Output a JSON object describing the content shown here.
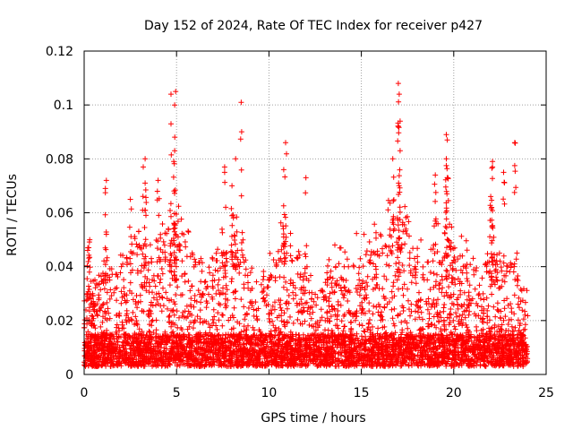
{
  "chart_data": {
    "type": "scatter",
    "title": "Day 152 of 2024, Rate Of TEC Index for receiver p427",
    "xlabel": "GPS time / hours",
    "ylabel": "ROTI / TECUs",
    "xlim": [
      0,
      25
    ],
    "ylim": [
      0,
      0.12
    ],
    "x_ticks": [
      0,
      5,
      10,
      15,
      20,
      25
    ],
    "x_tick_labels": [
      "0",
      "5",
      "10",
      "15",
      "20",
      "25"
    ],
    "y_ticks": [
      0,
      0.02,
      0.04,
      0.06,
      0.08,
      0.1,
      0.12
    ],
    "y_tick_labels": [
      "0",
      "0.02",
      "0.04",
      "0.06",
      "0.08",
      "0.1",
      "0.12"
    ],
    "grid": true,
    "marker": "+",
    "color": "#ff0000",
    "data_extent_hours": [
      0,
      24
    ],
    "envelope": {
      "hours": [
        0,
        0.5,
        1,
        1.5,
        2,
        2.5,
        3,
        3.5,
        4,
        4.5,
        5,
        5.5,
        6,
        6.5,
        7,
        7.5,
        8,
        8.5,
        9,
        9.5,
        10,
        10.5,
        11,
        11.5,
        12,
        12.5,
        13,
        13.5,
        14,
        14.5,
        15,
        15.5,
        16,
        16.5,
        17,
        17.5,
        18,
        18.5,
        19,
        19.5,
        20,
        20.5,
        21,
        21.5,
        22,
        22.5,
        23,
        23.5,
        24
      ],
      "typical_max": [
        0.03,
        0.028,
        0.035,
        0.032,
        0.038,
        0.042,
        0.045,
        0.04,
        0.048,
        0.052,
        0.055,
        0.048,
        0.04,
        0.035,
        0.038,
        0.045,
        0.05,
        0.046,
        0.035,
        0.03,
        0.038,
        0.045,
        0.05,
        0.042,
        0.035,
        0.03,
        0.034,
        0.04,
        0.045,
        0.042,
        0.046,
        0.045,
        0.05,
        0.055,
        0.058,
        0.05,
        0.045,
        0.042,
        0.046,
        0.05,
        0.045,
        0.042,
        0.04,
        0.035,
        0.045,
        0.038,
        0.04,
        0.036,
        0.025
      ]
    },
    "notable_points": [
      {
        "x": 4.7,
        "y": 0.104
      },
      {
        "x": 4.95,
        "y": 0.105
      },
      {
        "x": 4.9,
        "y": 0.1
      },
      {
        "x": 4.7,
        "y": 0.093
      },
      {
        "x": 4.9,
        "y": 0.083
      },
      {
        "x": 4.85,
        "y": 0.079
      },
      {
        "x": 4.0,
        "y": 0.072
      },
      {
        "x": 8.5,
        "y": 0.101
      },
      {
        "x": 8.2,
        "y": 0.08
      },
      {
        "x": 7.6,
        "y": 0.077
      },
      {
        "x": 8.0,
        "y": 0.07
      },
      {
        "x": 10.9,
        "y": 0.086
      },
      {
        "x": 10.8,
        "y": 0.076
      },
      {
        "x": 12.0,
        "y": 0.073
      },
      {
        "x": 3.3,
        "y": 0.08
      },
      {
        "x": 3.2,
        "y": 0.077
      },
      {
        "x": 3.3,
        "y": 0.071
      },
      {
        "x": 1.2,
        "y": 0.072
      },
      {
        "x": 1.15,
        "y": 0.069
      },
      {
        "x": 17.0,
        "y": 0.108
      },
      {
        "x": 17.05,
        "y": 0.104
      },
      {
        "x": 17.1,
        "y": 0.094
      },
      {
        "x": 17.0,
        "y": 0.092
      },
      {
        "x": 16.7,
        "y": 0.08
      },
      {
        "x": 17.1,
        "y": 0.083
      },
      {
        "x": 19.6,
        "y": 0.089
      },
      {
        "x": 19.65,
        "y": 0.087
      },
      {
        "x": 19.6,
        "y": 0.08
      },
      {
        "x": 19.65,
        "y": 0.073
      },
      {
        "x": 19.0,
        "y": 0.074
      },
      {
        "x": 22.1,
        "y": 0.079
      },
      {
        "x": 22.1,
        "y": 0.077
      },
      {
        "x": 22.0,
        "y": 0.066
      },
      {
        "x": 22.05,
        "y": 0.062
      },
      {
        "x": 23.3,
        "y": 0.086
      },
      {
        "x": 22.7,
        "y": 0.075
      },
      {
        "x": 0.2,
        "y": 0.047
      },
      {
        "x": 0.3,
        "y": 0.05
      },
      {
        "x": 2.5,
        "y": 0.065
      }
    ]
  }
}
